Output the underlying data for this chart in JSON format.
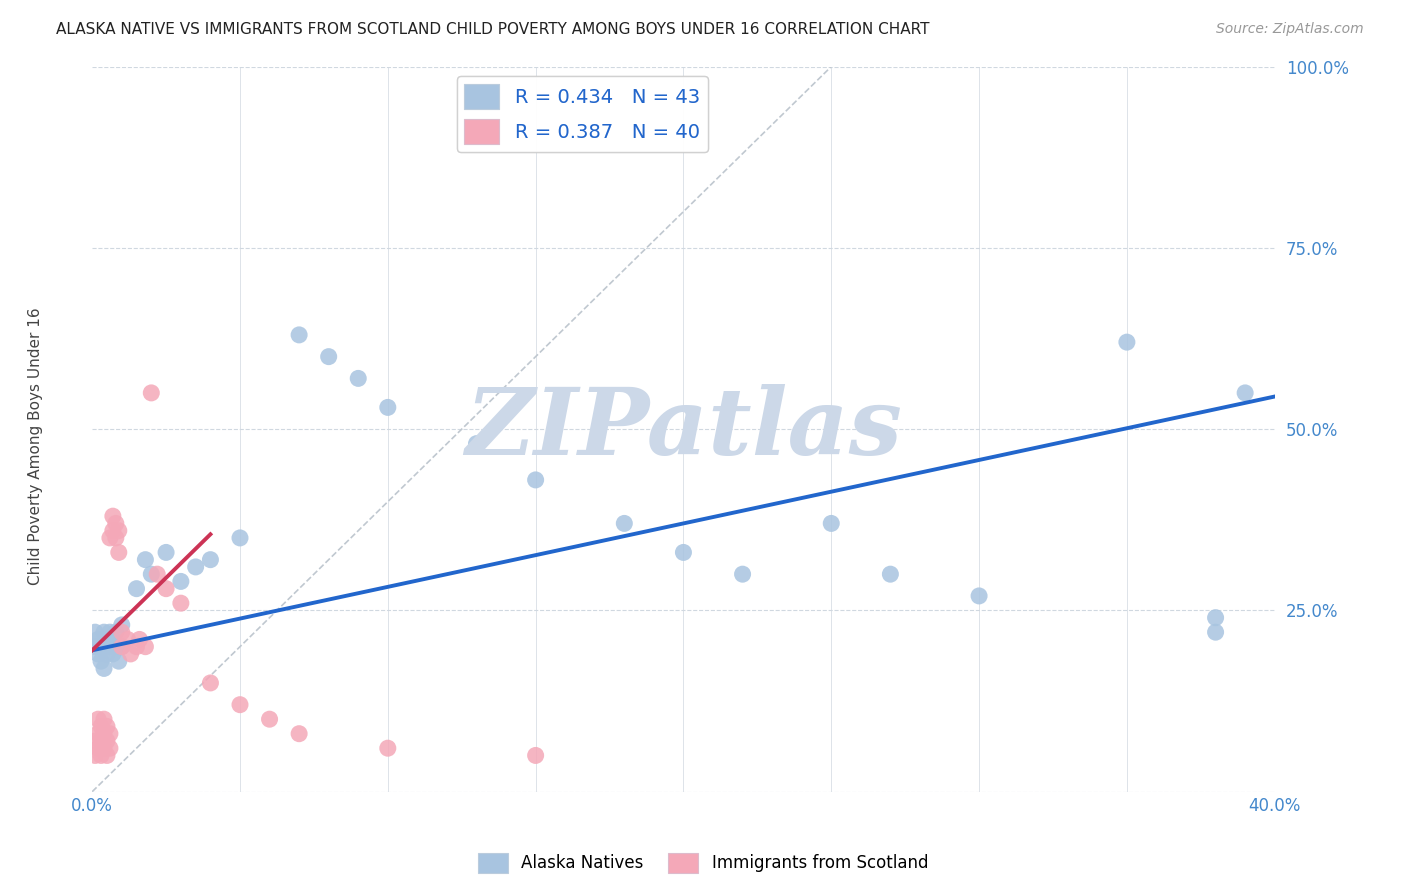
{
  "title": "ALASKA NATIVE VS IMMIGRANTS FROM SCOTLAND CHILD POVERTY AMONG BOYS UNDER 16 CORRELATION CHART",
  "source": "Source: ZipAtlas.com",
  "ylabel": "Child Poverty Among Boys Under 16",
  "xlim": [
    0.0,
    0.4
  ],
  "ylim": [
    0.0,
    1.0
  ],
  "xticks": [
    0.0,
    0.05,
    0.1,
    0.15,
    0.2,
    0.25,
    0.3,
    0.35,
    0.4
  ],
  "yticks": [
    0.0,
    0.25,
    0.5,
    0.75,
    1.0
  ],
  "alaska_color": "#a8c4e0",
  "scotland_color": "#f4a8b8",
  "alaska_line_color": "#2266cc",
  "scotland_line_color": "#cc3355",
  "watermark": "ZIPatlas",
  "watermark_color": "#ccd8e8",
  "legend1_R": "0.434",
  "legend1_N": "43",
  "legend2_R": "0.387",
  "legend2_N": "40",
  "alaska_x": [
    0.001,
    0.001,
    0.002,
    0.002,
    0.003,
    0.003,
    0.004,
    0.004,
    0.005,
    0.005,
    0.006,
    0.006,
    0.007,
    0.007,
    0.008,
    0.008,
    0.009,
    0.01,
    0.01,
    0.015,
    0.018,
    0.02,
    0.025,
    0.03,
    0.035,
    0.04,
    0.05,
    0.07,
    0.08,
    0.09,
    0.1,
    0.13,
    0.15,
    0.18,
    0.2,
    0.22,
    0.25,
    0.27,
    0.3,
    0.35,
    0.38,
    0.38,
    0.39
  ],
  "alaska_y": [
    0.2,
    0.22,
    0.19,
    0.21,
    0.18,
    0.2,
    0.17,
    0.22,
    0.19,
    0.21,
    0.2,
    0.22,
    0.21,
    0.19,
    0.2,
    0.22,
    0.18,
    0.23,
    0.2,
    0.28,
    0.32,
    0.3,
    0.33,
    0.29,
    0.31,
    0.32,
    0.35,
    0.63,
    0.6,
    0.57,
    0.53,
    0.48,
    0.43,
    0.37,
    0.33,
    0.3,
    0.37,
    0.3,
    0.27,
    0.62,
    0.22,
    0.24,
    0.55
  ],
  "scotland_x": [
    0.001,
    0.001,
    0.002,
    0.002,
    0.002,
    0.003,
    0.003,
    0.003,
    0.004,
    0.004,
    0.004,
    0.005,
    0.005,
    0.005,
    0.006,
    0.006,
    0.006,
    0.007,
    0.007,
    0.008,
    0.008,
    0.009,
    0.009,
    0.01,
    0.01,
    0.012,
    0.013,
    0.015,
    0.016,
    0.018,
    0.02,
    0.022,
    0.025,
    0.03,
    0.04,
    0.05,
    0.06,
    0.07,
    0.1,
    0.15
  ],
  "scotland_y": [
    0.05,
    0.07,
    0.06,
    0.08,
    0.1,
    0.05,
    0.07,
    0.09,
    0.06,
    0.08,
    0.1,
    0.05,
    0.07,
    0.09,
    0.06,
    0.08,
    0.35,
    0.36,
    0.38,
    0.35,
    0.37,
    0.33,
    0.36,
    0.2,
    0.22,
    0.21,
    0.19,
    0.2,
    0.21,
    0.2,
    0.55,
    0.3,
    0.28,
    0.26,
    0.15,
    0.12,
    0.1,
    0.08,
    0.06,
    0.05
  ],
  "blue_line_x0": 0.0,
  "blue_line_y0": 0.195,
  "blue_line_x1": 0.4,
  "blue_line_y1": 0.545,
  "pink_line_x0": 0.0,
  "pink_line_y0": 0.195,
  "pink_line_x1": 0.04,
  "pink_line_y1": 0.355
}
